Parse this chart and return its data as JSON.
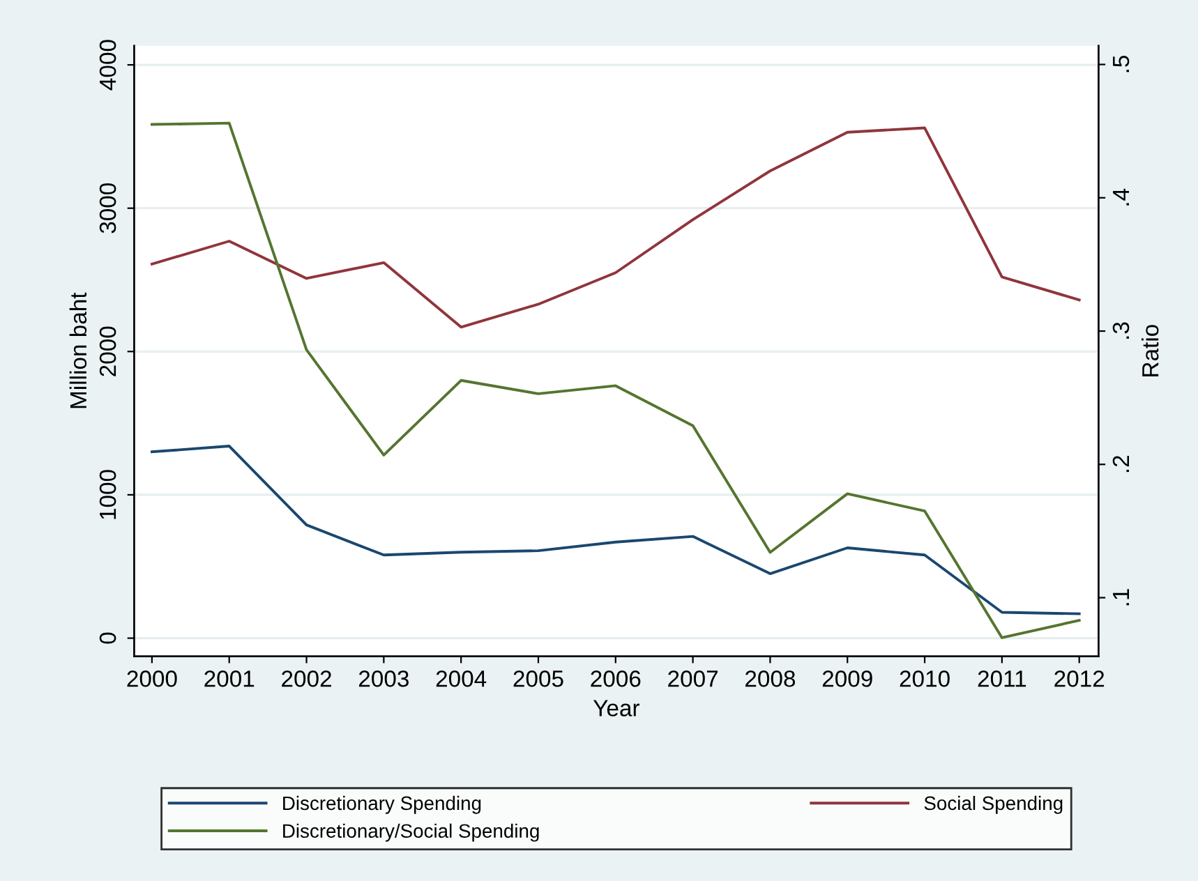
{
  "chart_data": {
    "type": "line",
    "xlabel": "Year",
    "ylabel": "Million baht",
    "y2label": "Ratio",
    "x": [
      2000,
      2001,
      2002,
      2003,
      2004,
      2005,
      2006,
      2007,
      2008,
      2009,
      2010,
      2011,
      2012
    ],
    "series": [
      {
        "name": "Discretionary Spending",
        "color": "#1a476f",
        "values": [
          1300,
          1340,
          790,
          580,
          600,
          610,
          670,
          710,
          450,
          630,
          580,
          180,
          170
        ]
      },
      {
        "name": "Social Spending",
        "color": "#90353b",
        "values": [
          2610,
          2770,
          2510,
          2620,
          2170,
          2330,
          2550,
          2920,
          3260,
          3530,
          3560,
          2520,
          2360
        ]
      },
      {
        "name": "Discretionary/Social Spending",
        "color": "#55752f",
        "axis": "y2",
        "values": [
          0.455,
          0.456,
          0.286,
          0.207,
          0.263,
          0.253,
          0.259,
          0.229,
          0.134,
          0.178,
          0.165,
          0.07,
          0.083
        ]
      }
    ],
    "xlim": [
      1999.77,
      2012.25
    ],
    "xticks": [
      2000,
      2001,
      2002,
      2003,
      2004,
      2005,
      2006,
      2007,
      2008,
      2009,
      2010,
      2011,
      2012
    ],
    "ylim": [
      -127,
      4133
    ],
    "yticks": [
      0,
      1000,
      2000,
      3000,
      4000
    ],
    "y2lim": [
      0.056,
      0.514
    ],
    "y2ticks": [
      {
        "value": 0.1,
        "label": ".1"
      },
      {
        "value": 0.2,
        "label": ".2"
      },
      {
        "value": 0.3,
        "label": ".3"
      },
      {
        "value": 0.4,
        "label": ".4"
      },
      {
        "value": 0.5,
        "label": ".5"
      }
    ],
    "grid": "y",
    "legend": "bottom",
    "marker": "none",
    "line_style": "solid"
  }
}
